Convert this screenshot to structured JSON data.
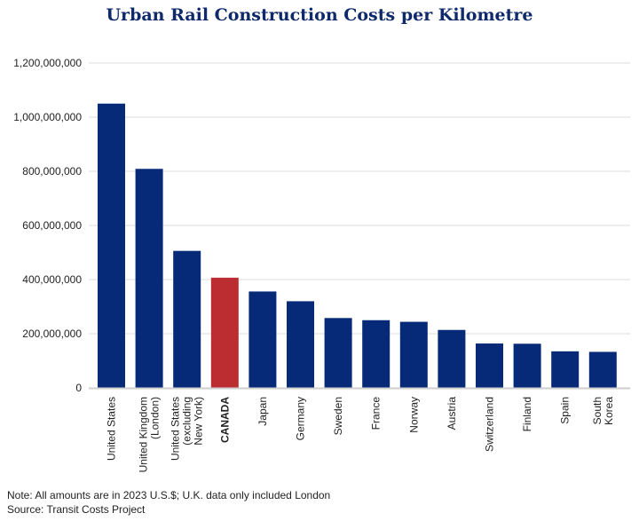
{
  "chart_data": {
    "type": "bar",
    "title": "Urban Rail Construction Costs per Kilometre",
    "categories": [
      "United States",
      "United Kingdom (London)",
      "United States (excluding New York)",
      "CANADA",
      "Japan",
      "Germany",
      "Sweden",
      "France",
      "Norway",
      "Austria",
      "Switzerland",
      "Finland",
      "Spain",
      "South Korea"
    ],
    "category_lines": [
      [
        "United States"
      ],
      [
        "United Kingdom",
        "(London)"
      ],
      [
        "United States",
        "(excluding",
        "New York)"
      ],
      [
        "CANADA"
      ],
      [
        "Japan"
      ],
      [
        "Germany"
      ],
      [
        "Sweden"
      ],
      [
        "France"
      ],
      [
        "Norway"
      ],
      [
        "Austria"
      ],
      [
        "Switzerland"
      ],
      [
        "Finland"
      ],
      [
        "Spain"
      ],
      [
        "South",
        "Korea"
      ]
    ],
    "values": [
      1050000000,
      809000000,
      506000000,
      407000000,
      356000000,
      320000000,
      258000000,
      250000000,
      244000000,
      214000000,
      164000000,
      163000000,
      135000000,
      133000000
    ],
    "highlight": "CANADA",
    "colors": {
      "default": "#062a78",
      "highlight": "#bb2d30",
      "title": "#0f2a6b"
    },
    "ylim": [
      0,
      1200000000
    ],
    "yticks": [
      0,
      200000000,
      400000000,
      600000000,
      800000000,
      1000000000,
      1200000000
    ],
    "ytick_labels": [
      "0",
      "200,000,000",
      "400,000,000",
      "600,000,000",
      "800,000,000",
      "1,000,000,000",
      "1,200,000,000"
    ],
    "grid": true,
    "xlabel": "",
    "ylabel": ""
  },
  "notes": {
    "note": "Note: All amounts are in 2023 U.S.$; U.K. data only included London",
    "source": "Source: Transit Costs Project"
  }
}
